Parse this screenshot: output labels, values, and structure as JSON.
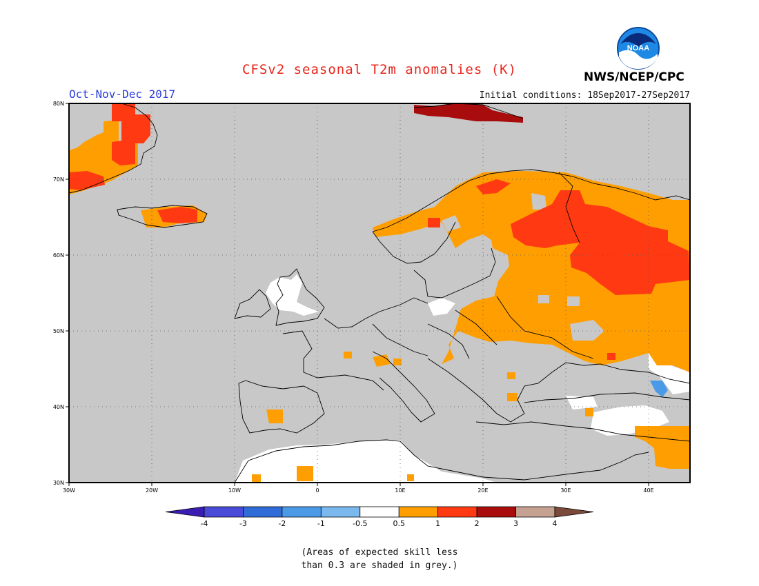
{
  "header": {
    "title": "CFSv2 seasonal T2m anomalies (K)",
    "season": "Oct-Nov-Dec 2017",
    "initial_conditions": "Initial conditions: 18Sep2017-27Sep2017",
    "agency": "NWS/NCEP/CPC",
    "logo_text": "NOAA"
  },
  "map": {
    "region": "Europe",
    "lon_range": [
      -30,
      45
    ],
    "lat_range": [
      30,
      80
    ],
    "lon_ticks": [
      "30W",
      "20W",
      "10W",
      "0",
      "10E",
      "20E",
      "30E",
      "40E"
    ],
    "lat_ticks": [
      "80N",
      "70N",
      "60N",
      "50N",
      "40N",
      "30N"
    ],
    "grid": true,
    "ocean_color": "#c8c8c8"
  },
  "colorbar": {
    "bins": [
      {
        "color": "#3a1eb4"
      },
      {
        "color": "#4a4ad8"
      },
      {
        "color": "#2f6cd8"
      },
      {
        "color": "#4a9ae8"
      },
      {
        "color": "#7ab8ee"
      },
      {
        "color": "#ffffff"
      },
      {
        "color": "#ff9e00"
      },
      {
        "color": "#ff3a12"
      },
      {
        "color": "#a80c0c"
      },
      {
        "color": "#c4a190"
      },
      {
        "color": "#7a4a3a"
      }
    ],
    "labels": [
      "-4",
      "-3",
      "-2",
      "-1",
      "-0.5",
      "0.5",
      "1",
      "2",
      "3",
      "4"
    ]
  },
  "note": {
    "line1": "(Areas of expected skill less",
    "line2": "than 0.3 are shaded in grey.)"
  }
}
